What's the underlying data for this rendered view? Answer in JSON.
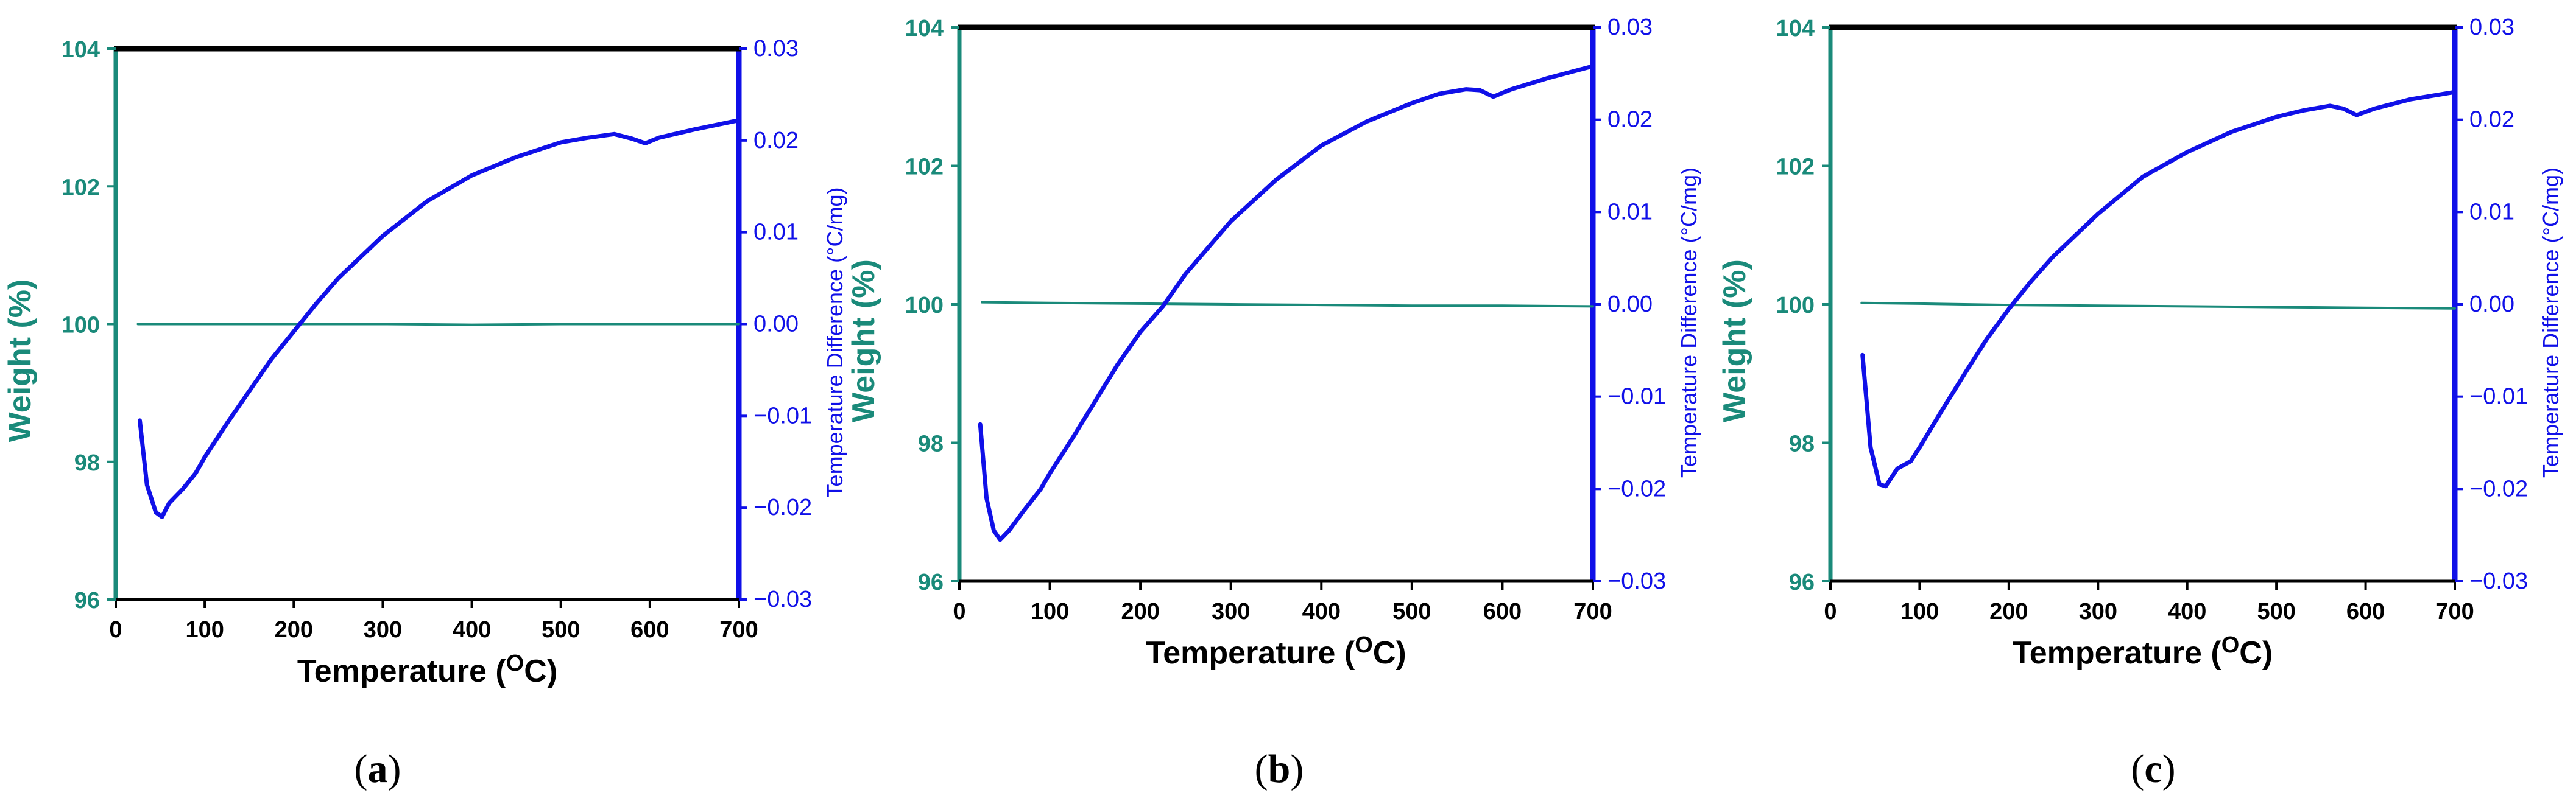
{
  "colors": {
    "weight": "#1a8a7a",
    "temp_diff": "#1010e8",
    "frame": "#000000",
    "top_axis": "#000000"
  },
  "chart_data": [
    {
      "type": "line",
      "panel": "a",
      "caption": "(a)",
      "xlabel": "Temperature (",
      "xlabel_super": "O",
      "xlabel_tail": "C)",
      "ylabel_left": "Weight (%)",
      "ylabel_right": "Temperature Difference (°C/mg)",
      "xlim": [
        0,
        700
      ],
      "ylim_left": [
        96,
        104
      ],
      "ylim_right": [
        -0.03,
        0.03
      ],
      "x_ticks": [
        "0",
        "100",
        "200",
        "300",
        "400",
        "500",
        "600",
        "700"
      ],
      "y_left_ticks": [
        "96",
        "98",
        "100",
        "102",
        "104"
      ],
      "y_right_ticks": [
        "-0.03",
        "-0.02",
        "-0.01",
        "0.00",
        "0.01",
        "0.02",
        "0.03"
      ],
      "series": [
        {
          "name": "Weight",
          "axis": "left",
          "x": [
            25,
            100,
            200,
            300,
            400,
            500,
            600,
            700
          ],
          "y": [
            100.0,
            100.0,
            100.0,
            100.0,
            99.99,
            100.0,
            100.0,
            100.0
          ]
        },
        {
          "name": "Temperature Difference",
          "axis": "right",
          "x": [
            27,
            35,
            45,
            52,
            60,
            75,
            90,
            100,
            125,
            150,
            175,
            200,
            225,
            250,
            300,
            350,
            400,
            450,
            500,
            530,
            560,
            580,
            595,
            610,
            650,
            700
          ],
          "y": [
            -0.0105,
            -0.0175,
            -0.0205,
            -0.021,
            -0.0195,
            -0.018,
            -0.0162,
            -0.0145,
            -0.0108,
            -0.0073,
            -0.0038,
            -0.0008,
            0.0022,
            0.005,
            0.0096,
            0.0134,
            0.0162,
            0.0182,
            0.0198,
            0.0203,
            0.0207,
            0.0202,
            0.0197,
            0.0203,
            0.0212,
            0.0222
          ]
        }
      ]
    },
    {
      "type": "line",
      "panel": "b",
      "caption": "(b)",
      "xlabel": "Temperature (",
      "xlabel_super": "O",
      "xlabel_tail": "C)",
      "ylabel_left": "Weight (%)",
      "ylabel_right": "Temperature Difference (°C/mg)",
      "xlim": [
        0,
        700
      ],
      "ylim_left": [
        96,
        104
      ],
      "ylim_right": [
        -0.03,
        0.03
      ],
      "x_ticks": [
        "0",
        "100",
        "200",
        "300",
        "400",
        "500",
        "600",
        "700"
      ],
      "y_left_ticks": [
        "96",
        "98",
        "100",
        "102",
        "104"
      ],
      "y_right_ticks": [
        "-0.03",
        "-0.02",
        "-0.01",
        "0.00",
        "0.01",
        "0.02",
        "0.03"
      ],
      "series": [
        {
          "name": "Weight",
          "axis": "left",
          "x": [
            25,
            100,
            200,
            300,
            400,
            500,
            600,
            700
          ],
          "y": [
            100.03,
            100.02,
            100.01,
            100.0,
            99.99,
            99.98,
            99.98,
            99.97
          ]
        },
        {
          "name": "Temperature Difference",
          "axis": "right",
          "x": [
            23,
            30,
            38,
            45,
            55,
            70,
            90,
            100,
            125,
            150,
            175,
            200,
            225,
            250,
            300,
            350,
            400,
            450,
            500,
            530,
            560,
            575,
            590,
            610,
            650,
            700
          ],
          "y": [
            -0.013,
            -0.021,
            -0.0245,
            -0.0255,
            -0.0245,
            -0.0225,
            -0.02,
            -0.0183,
            -0.0145,
            -0.0105,
            -0.0065,
            -0.003,
            -0.0002,
            0.0033,
            0.009,
            0.0135,
            0.0172,
            0.0198,
            0.0218,
            0.0228,
            0.0233,
            0.0232,
            0.0225,
            0.0233,
            0.0245,
            0.0258
          ]
        }
      ]
    },
    {
      "type": "line",
      "panel": "c",
      "caption": "(c)",
      "xlabel": "Temperature (",
      "xlabel_super": "O",
      "xlabel_tail": "C)",
      "ylabel_left": "Weight (%)",
      "ylabel_right": "Temperature Difference (°C/mg)",
      "xlim": [
        0,
        700
      ],
      "ylim_left": [
        96,
        104
      ],
      "ylim_right": [
        -0.03,
        0.03
      ],
      "x_ticks": [
        "0",
        "100",
        "200",
        "300",
        "400",
        "500",
        "600",
        "700"
      ],
      "y_left_ticks": [
        "96",
        "98",
        "100",
        "102",
        "104"
      ],
      "y_right_ticks": [
        "-0.03",
        "-0.02",
        "-0.01",
        "0.00",
        "0.01",
        "0.02",
        "0.03"
      ],
      "series": [
        {
          "name": "Weight",
          "axis": "left",
          "x": [
            35,
            100,
            200,
            300,
            400,
            500,
            600,
            700
          ],
          "y": [
            100.02,
            100.01,
            99.99,
            99.98,
            99.97,
            99.96,
            99.95,
            99.94
          ]
        },
        {
          "name": "Temperature Difference",
          "axis": "right",
          "x": [
            36,
            45,
            55,
            62,
            75,
            90,
            100,
            125,
            150,
            175,
            200,
            225,
            250,
            300,
            350,
            400,
            450,
            500,
            530,
            560,
            575,
            590,
            610,
            650,
            700
          ],
          "y": [
            -0.0055,
            -0.0155,
            -0.0195,
            -0.0197,
            -0.0178,
            -0.017,
            -0.0155,
            -0.0115,
            -0.0076,
            -0.0038,
            -0.0005,
            0.0025,
            0.0052,
            0.0098,
            0.0138,
            0.0165,
            0.0187,
            0.0203,
            0.021,
            0.0215,
            0.0212,
            0.0205,
            0.0212,
            0.0222,
            0.023
          ]
        }
      ]
    }
  ]
}
